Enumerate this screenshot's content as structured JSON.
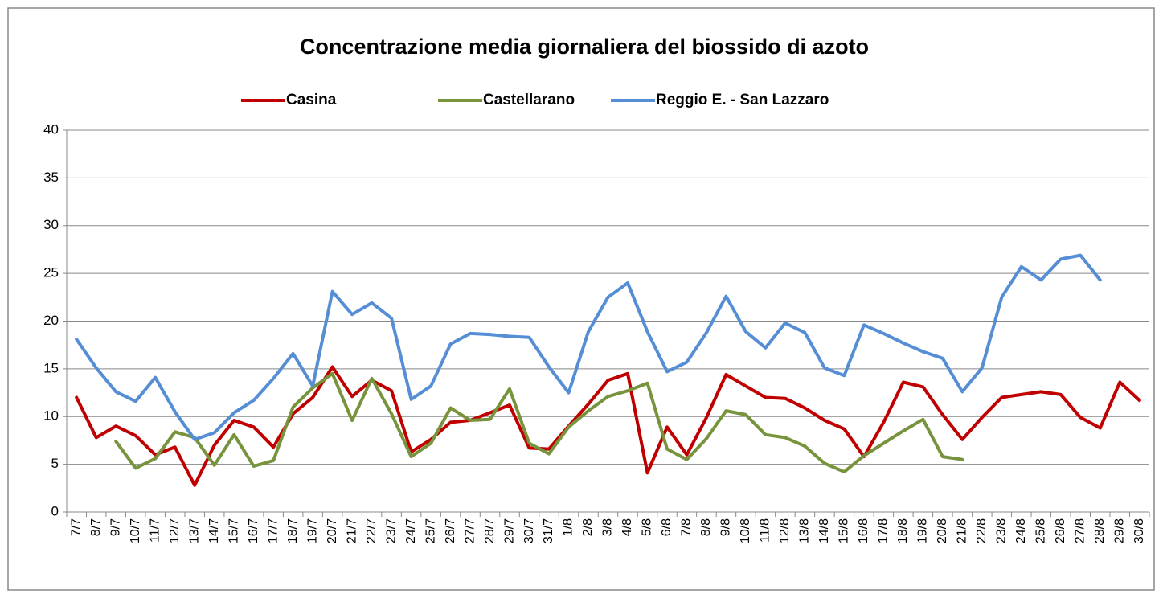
{
  "chart_data": {
    "type": "line",
    "title": "Concentrazione media giornaliera del biossido di azoto",
    "categories": [
      "7/7",
      "8/7",
      "9/7",
      "10/7",
      "11/7",
      "12/7",
      "13/7",
      "14/7",
      "15/7",
      "16/7",
      "17/7",
      "18/7",
      "19/7",
      "20/7",
      "21/7",
      "22/7",
      "23/7",
      "24/7",
      "25/7",
      "26/7",
      "27/7",
      "28/7",
      "29/7",
      "30/7",
      "31/7",
      "1/8",
      "2/8",
      "3/8",
      "4/8",
      "5/8",
      "6/8",
      "7/8",
      "8/8",
      "9/8",
      "10/8",
      "11/8",
      "12/8",
      "13/8",
      "14/8",
      "15/8",
      "16/8",
      "17/8",
      "18/8",
      "19/8",
      "20/8",
      "21/8",
      "22/8",
      "23/8",
      "24/8",
      "25/8",
      "26/8",
      "27/8",
      "28/8",
      "29/8",
      "30/8"
    ],
    "series": [
      {
        "name": "Casina",
        "color": "#c00000",
        "values": [
          12,
          7.8,
          9,
          8,
          6,
          6.8,
          2.8,
          7,
          9.6,
          8.9,
          6.8,
          10.3,
          12,
          15.2,
          12.1,
          13.8,
          12.7,
          6.3,
          7.6,
          9.4,
          9.6,
          10.4,
          11.2,
          6.7,
          6.6,
          9,
          11.3,
          13.8,
          14.5,
          4.1,
          8.9,
          6,
          9.9,
          14.4,
          13.2,
          12,
          11.9,
          10.9,
          9.6,
          8.7,
          5.8,
          9.4,
          13.6,
          13.1,
          10.2,
          7.6,
          9.9,
          12,
          12.3,
          12.6,
          12.3,
          9.9,
          8.8,
          13.6,
          11.7
        ]
      },
      {
        "name": "Castellarano",
        "color": "#77933c",
        "values": [
          null,
          null,
          7.4,
          4.6,
          5.6,
          8.4,
          7.8,
          4.9,
          8.1,
          4.8,
          5.4,
          11,
          13,
          14.5,
          9.6,
          14,
          10.3,
          5.8,
          7.2,
          10.9,
          9.6,
          9.7,
          12.9,
          7.2,
          6.1,
          8.9,
          10.6,
          12.1,
          12.7,
          13.5,
          6.6,
          5.5,
          7.7,
          10.6,
          10.2,
          8.1,
          7.8,
          6.9,
          5.1,
          4.2,
          5.9,
          7.2,
          8.5,
          9.7,
          5.8,
          5.5,
          null,
          null,
          null,
          null,
          null,
          null,
          null,
          null,
          null
        ]
      },
      {
        "name": "Reggio E. - San Lazzaro",
        "color": "#558ed5",
        "values": [
          18.1,
          15.1,
          12.6,
          11.6,
          14.1,
          10.5,
          7.6,
          8.3,
          10.4,
          11.7,
          14,
          16.6,
          13.2,
          23.1,
          20.7,
          21.9,
          20.3,
          11.8,
          13.2,
          17.6,
          18.7,
          18.6,
          18.4,
          18.3,
          15.2,
          12.5,
          18.9,
          22.5,
          24,
          18.9,
          14.7,
          15.7,
          18.8,
          22.6,
          18.9,
          17.2,
          19.8,
          18.8,
          15.1,
          14.3,
          19.6,
          18.7,
          17.7,
          16.8,
          16.1,
          12.6,
          15.1,
          22.5,
          25.7,
          24.3,
          26.5,
          26.9,
          24.3,
          null,
          null
        ]
      }
    ],
    "ylim": [
      0,
      40
    ],
    "yticks": [
      0,
      5,
      10,
      15,
      20,
      25,
      30,
      35,
      40
    ],
    "grid": true,
    "legend": "top"
  }
}
